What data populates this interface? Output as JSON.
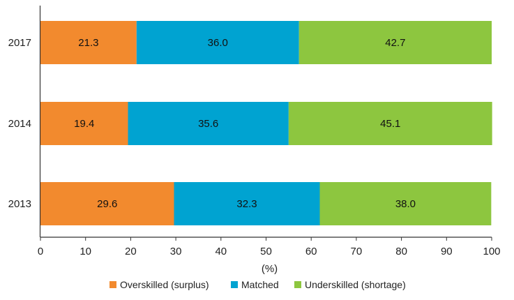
{
  "chart_data": {
    "type": "bar",
    "orientation": "horizontal",
    "stacked": true,
    "categories": [
      "2017",
      "2014",
      "2013"
    ],
    "series": [
      {
        "name": "Overskilled (surplus)",
        "color": "#f28a2e",
        "values": [
          21.3,
          19.4,
          29.6
        ]
      },
      {
        "name": "Matched",
        "color": "#00a3d1",
        "values": [
          36.0,
          35.6,
          32.3
        ]
      },
      {
        "name": "Underskilled (shortage)",
        "color": "#8dc63f",
        "values": [
          42.7,
          45.1,
          38.0
        ]
      }
    ],
    "xlim": [
      0,
      100
    ],
    "x_ticks": [
      0,
      10,
      20,
      30,
      40,
      50,
      60,
      70,
      80,
      90,
      100
    ],
    "xlabel": "(%)",
    "ylabel": "",
    "title": "",
    "grid": false,
    "legend_position": "bottom",
    "data_labels": true
  }
}
